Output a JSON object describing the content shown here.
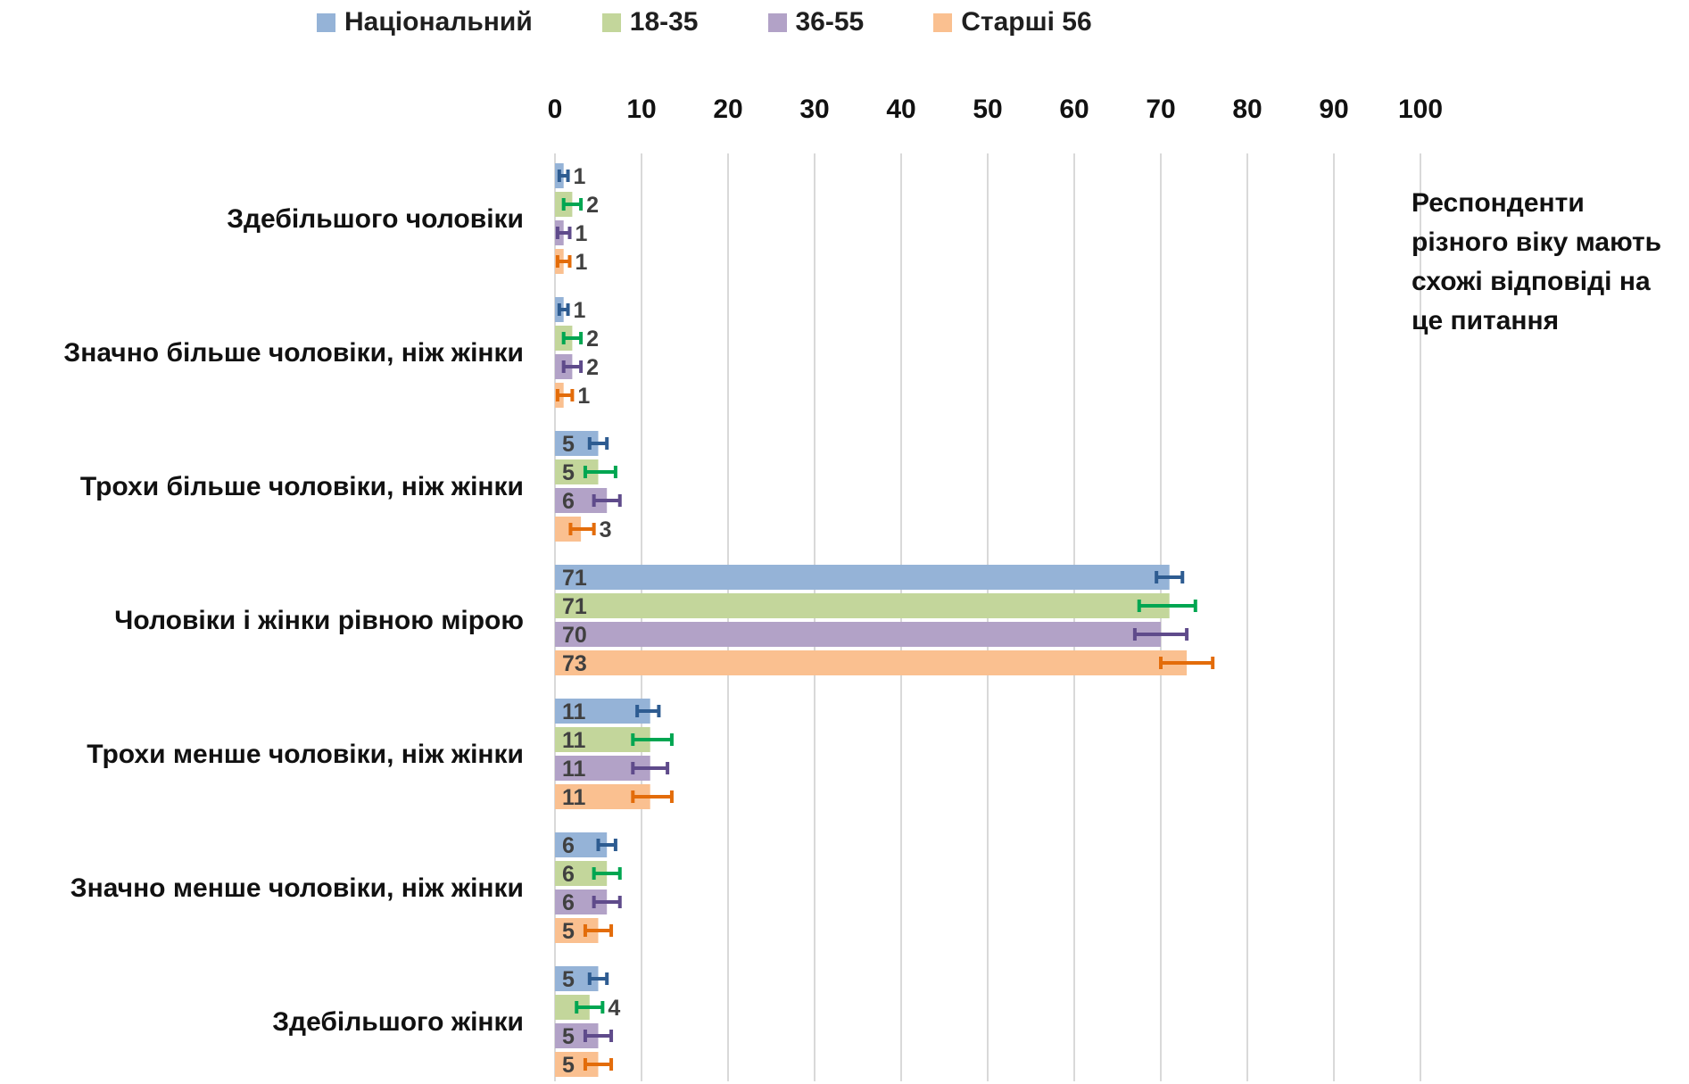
{
  "chart_data": {
    "type": "bar",
    "orientation": "horizontal",
    "categories": [
      "Здебільшого чоловіки",
      "Значно більше чоловіки, ніж жінки",
      "Трохи більше чоловіки, ніж жінки",
      "Чоловіки і жінки рівною мірою",
      "Трохи менше чоловіки, ніж жінки",
      "Значно менше чоловіки, ніж жінки",
      "Здебільшого жінки"
    ],
    "series": [
      {
        "name": "Національний",
        "color": "#95b3d7",
        "error_color": "#2e5c91",
        "values": [
          1,
          1,
          5,
          71,
          11,
          6,
          5
        ],
        "labels": [
          "1",
          "1",
          "5",
          "71",
          "11",
          "6",
          "5"
        ],
        "error_low": [
          0.5,
          0.5,
          4,
          69.5,
          9.5,
          5,
          4
        ],
        "error_high": [
          1.5,
          1.5,
          6,
          72.5,
          12,
          7,
          6
        ]
      },
      {
        "name": "18-35",
        "color": "#c3d69b",
        "error_color": "#00a651",
        "values": [
          2,
          2,
          5,
          71,
          11,
          6,
          4
        ],
        "labels": [
          "2",
          "2",
          "5",
          "71",
          "11",
          "6",
          "4"
        ],
        "error_low": [
          1,
          1,
          3.5,
          67.5,
          9,
          4.5,
          2.5
        ],
        "error_high": [
          3,
          3,
          7,
          74,
          13.5,
          7.5,
          5.5
        ]
      },
      {
        "name": "36-55",
        "color": "#b2a2c7",
        "error_color": "#5f4b8b",
        "values": [
          1,
          2,
          6,
          70,
          11,
          6,
          5
        ],
        "labels": [
          "1",
          "2",
          "6",
          "70",
          "11",
          "6",
          "5"
        ],
        "error_low": [
          0.3,
          1,
          4.5,
          67,
          9,
          4.5,
          3.5
        ],
        "error_high": [
          1.7,
          3,
          7.5,
          73,
          13,
          7.5,
          6.5
        ]
      },
      {
        "name": "Старші 56",
        "color": "#fac090",
        "error_color": "#e36c0a",
        "values": [
          1,
          1,
          3,
          73,
          11,
          5,
          5
        ],
        "labels": [
          "1",
          "1",
          "3",
          "73",
          "11",
          "5",
          "5"
        ],
        "error_low": [
          0.3,
          0.3,
          1.8,
          70,
          9,
          3.5,
          3.5
        ],
        "error_high": [
          1.7,
          2,
          4.5,
          76,
          13.5,
          6.5,
          6.5
        ]
      }
    ],
    "xlim": [
      0,
      100
    ],
    "xticks": [
      "0",
      "10",
      "20",
      "30",
      "40",
      "50",
      "60",
      "70",
      "80",
      "90",
      "100"
    ],
    "x_axis_position": "top",
    "grid": "vertical",
    "legend": "top",
    "annotation": "Респонденти різного віку мають схожі відповіді на це питання"
  }
}
